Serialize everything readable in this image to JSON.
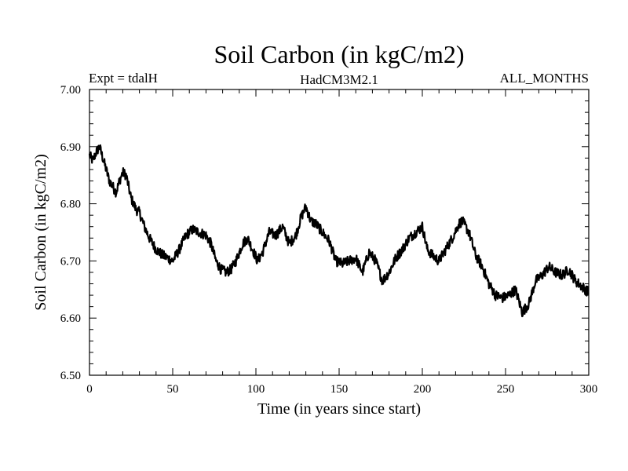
{
  "chart_data": {
    "type": "line",
    "title": "Soil Carbon (in kgC/m2)",
    "subtitle_left": "Expt = tdalH",
    "subtitle_center": "HadCM3M2.1",
    "subtitle_right": "ALL_MONTHS",
    "xlabel": "Time (in years since start)",
    "ylabel": "Soil Carbon (in kgC/m2)",
    "xlim": [
      0,
      300
    ],
    "ylim": [
      6.5,
      7.0
    ],
    "xticks": [
      0,
      50,
      100,
      150,
      200,
      250,
      300
    ],
    "xtick_labels": [
      "0",
      "50",
      "100",
      "150",
      "200",
      "250",
      "300"
    ],
    "yticks": [
      6.5,
      6.6,
      6.7,
      6.8,
      6.9,
      7.0
    ],
    "ytick_labels": [
      "6.50",
      "6.60",
      "6.70",
      "6.80",
      "6.90",
      "7.00"
    ],
    "grid": false,
    "line_color": "#000000",
    "series": [
      {
        "x": [
          0,
          2,
          4,
          6,
          8,
          10,
          12,
          14,
          16,
          18,
          20,
          22,
          25,
          28,
          30,
          33,
          36,
          40,
          44,
          47,
          50,
          54,
          58,
          62,
          66,
          70,
          73,
          76,
          79,
          82,
          85,
          88,
          92,
          95,
          98,
          101,
          104,
          108,
          112,
          116,
          120,
          124,
          127,
          130,
          133,
          136,
          140,
          144,
          148,
          152,
          156,
          160,
          164,
          168,
          172,
          176,
          180,
          184,
          188,
          192,
          196,
          200,
          203,
          206,
          210,
          214,
          218,
          222,
          224,
          228,
          232,
          236,
          240,
          244,
          248,
          252,
          256,
          260,
          264,
          268,
          272,
          276,
          280,
          284,
          288,
          292,
          296,
          300
        ],
        "y": [
          6.885,
          6.875,
          6.89,
          6.9,
          6.88,
          6.86,
          6.84,
          6.83,
          6.82,
          6.84,
          6.855,
          6.85,
          6.81,
          6.79,
          6.785,
          6.76,
          6.74,
          6.72,
          6.71,
          6.705,
          6.7,
          6.72,
          6.745,
          6.755,
          6.75,
          6.745,
          6.73,
          6.7,
          6.685,
          6.68,
          6.685,
          6.7,
          6.73,
          6.74,
          6.72,
          6.7,
          6.715,
          6.75,
          6.745,
          6.76,
          6.73,
          6.745,
          6.775,
          6.795,
          6.77,
          6.765,
          6.75,
          6.735,
          6.7,
          6.695,
          6.7,
          6.705,
          6.68,
          6.715,
          6.7,
          6.665,
          6.68,
          6.705,
          6.72,
          6.74,
          6.75,
          6.76,
          6.72,
          6.71,
          6.7,
          6.72,
          6.74,
          6.765,
          6.77,
          6.75,
          6.71,
          6.69,
          6.66,
          6.64,
          6.635,
          6.64,
          6.65,
          6.61,
          6.625,
          6.665,
          6.675,
          6.69,
          6.68,
          6.675,
          6.685,
          6.665,
          6.655,
          6.645
        ]
      }
    ]
  }
}
